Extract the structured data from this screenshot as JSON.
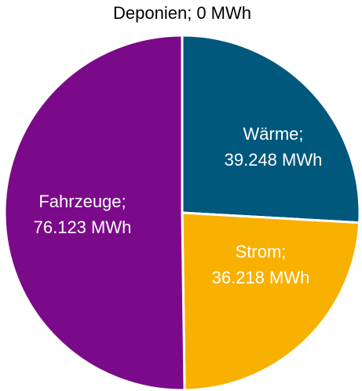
{
  "chart_data": {
    "type": "pie",
    "categories": [
      "Wärme;",
      "Strom;",
      "Fahrzeuge;",
      "Deponien;"
    ],
    "values": [
      39248,
      36218,
      76123,
      0
    ],
    "value_labels": [
      "39.248 MWh",
      "36.218 MWh",
      "76.123 MWh",
      "0 MWh"
    ],
    "colors": [
      "#00587c",
      "#f8b100",
      "#7b0a8a",
      "#a0a0a0"
    ]
  }
}
